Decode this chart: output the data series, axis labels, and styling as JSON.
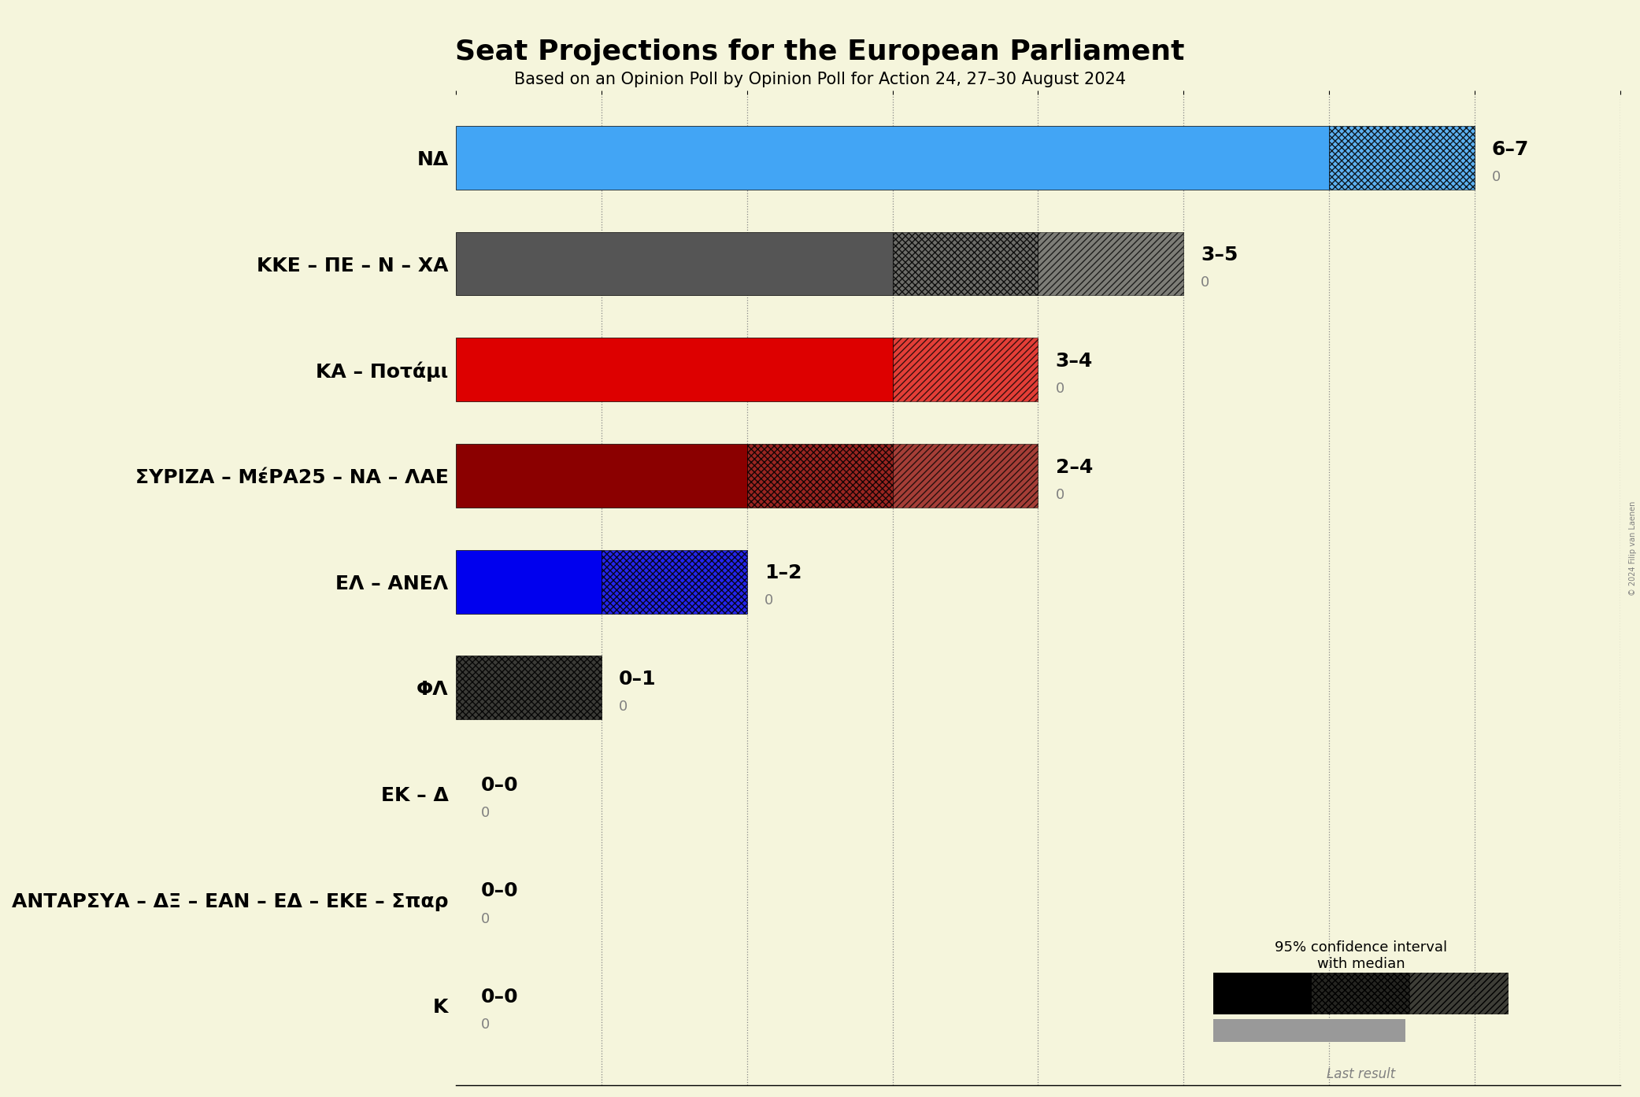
{
  "title": "Seat Projections for the European Parliament",
  "subtitle": "Based on an Opinion Poll by Opinion Poll for Action 24, 27–30 August 2024",
  "background_color": "#f5f5dc",
  "parties": [
    "NΔ",
    "ΚΚΕ – ΠΕ – Ν – ΧΑ",
    "ΚΑ – Ποτάμι",
    "ΣΥΡΙΖΑ – ΜέΡΑ25 – ΝΑ – ΛΑΕ",
    "ΕΛ – ΑΝΕΛ",
    "ΦΛ",
    "ΕΚ – Δ",
    "ΑΝΤΑΡΣΥΑ – ΔΞ – ΕΑΝ – ΕΔ – ΕΚΕ – Σπαρ",
    "Κ"
  ],
  "median_seats": [
    6,
    3,
    3,
    2,
    1,
    0,
    0,
    0,
    0
  ],
  "low_seats": [
    6,
    3,
    3,
    2,
    1,
    0,
    0,
    0,
    0
  ],
  "high_seats": [
    7,
    5,
    4,
    4,
    2,
    1,
    0,
    0,
    0
  ],
  "last_result": [
    0,
    0,
    0,
    0,
    0,
    0,
    0,
    0,
    0
  ],
  "labels": [
    "6–7",
    "3–5",
    "3–4",
    "2–4",
    "1–2",
    "0–1",
    "0–0",
    "0–0",
    "0–0"
  ],
  "colors": [
    "#42a5f5",
    "#555555",
    "#dd0000",
    "#8b0000",
    "#0000ee",
    "#1a1a1a",
    "#f5f5dc",
    "#f5f5dc",
    "#f5f5dc"
  ],
  "axis_max": 8,
  "copyright": "© 2024 Filip van Laenen",
  "bar_height": 0.6,
  "last_bar_height": 0.18,
  "note_segments": [
    {
      "low": 6,
      "median": 6,
      "high": 7
    },
    {
      "low": 3,
      "median": 3,
      "high": 5
    },
    {
      "low": 3,
      "median": 3,
      "high": 4
    },
    {
      "low": 2,
      "median": 2,
      "high": 4
    },
    {
      "low": 1,
      "median": 1,
      "high": 2
    },
    {
      "low": 0,
      "median": 0,
      "high": 1
    },
    {
      "low": 0,
      "median": 0,
      "high": 0
    },
    {
      "low": 0,
      "median": 0,
      "high": 0
    },
    {
      "low": 0,
      "median": 0,
      "high": 0
    }
  ]
}
